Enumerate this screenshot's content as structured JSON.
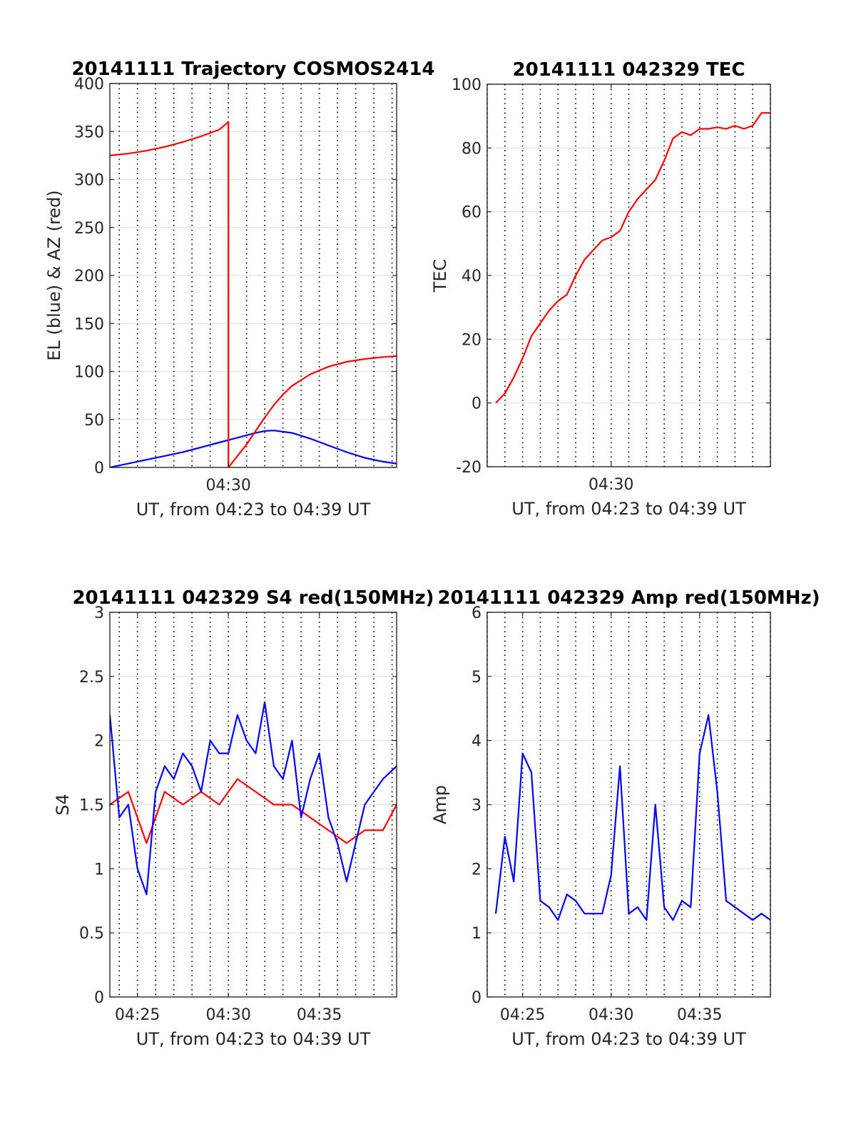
{
  "chart_data": [
    {
      "id": "trajectory",
      "type": "line",
      "title": "20141111 Trajectory COSMOS2414",
      "xlabel": "UT, from 04:23 to 04:39 UT",
      "ylabel": "EL (blue) & AZ (red)",
      "xlim": [
        "04:23:29",
        "04:39:15"
      ],
      "ylim": [
        0,
        400
      ],
      "yticks": [
        0,
        50,
        100,
        150,
        200,
        250,
        300,
        350,
        400
      ],
      "xticks": [
        "04:30"
      ],
      "grid": true,
      "series": [
        {
          "color": "#0000ff",
          "x": [
            "04:23:29",
            "04:24:30",
            "04:25:30",
            "04:26:30",
            "04:27:30",
            "04:28:30",
            "04:29:30",
            "04:30:30",
            "04:31:30",
            "04:32:00",
            "04:32:30",
            "04:33:30",
            "04:34:30",
            "04:35:30",
            "04:36:30",
            "04:37:30",
            "04:38:30",
            "04:39:15"
          ],
          "y": [
            0,
            4,
            8,
            12,
            16,
            21,
            26,
            31,
            36,
            38,
            38.5,
            36,
            30,
            23,
            16,
            10,
            6,
            4
          ]
        },
        {
          "color": "#ff0000",
          "x": [
            "04:23:29",
            "04:24:30",
            "04:25:30",
            "04:26:30",
            "04:27:30",
            "04:28:30",
            "04:29:30",
            "04:30:00",
            "04:30:00",
            "04:30:30",
            "04:31:00",
            "04:31:30",
            "04:32:00",
            "04:32:30",
            "04:33:00",
            "04:33:30",
            "04:34:30",
            "04:35:30",
            "04:36:30",
            "04:37:30",
            "04:38:30",
            "04:39:15"
          ],
          "y": [
            325,
            327,
            330,
            334,
            339,
            345,
            352,
            360,
            0,
            12,
            24,
            38,
            52,
            65,
            76,
            85,
            97,
            105,
            110,
            113,
            115,
            116
          ]
        }
      ]
    },
    {
      "id": "tec",
      "type": "line",
      "title": "20141111 042329 TEC",
      "xlabel": "UT, from 04:23 to 04:39 UT",
      "ylabel": "TEC",
      "xlim": [
        "04:23:00",
        "04:39:00"
      ],
      "ylim": [
        -20,
        100
      ],
      "yticks": [
        -20,
        0,
        20,
        40,
        60,
        80,
        100
      ],
      "xticks": [
        "04:30"
      ],
      "grid": true,
      "series": [
        {
          "color": "#ff0000",
          "x": [
            "04:23:29",
            "04:24:00",
            "04:24:30",
            "04:25:00",
            "04:25:30",
            "04:26:00",
            "04:26:30",
            "04:27:00",
            "04:27:30",
            "04:28:00",
            "04:28:30",
            "04:29:00",
            "04:29:30",
            "04:30:00",
            "04:30:30",
            "04:31:00",
            "04:31:30",
            "04:32:00",
            "04:32:30",
            "04:33:00",
            "04:33:30",
            "04:34:00",
            "04:34:30",
            "04:35:00",
            "04:35:30",
            "04:36:00",
            "04:36:30",
            "04:37:00",
            "04:37:30",
            "04:38:00",
            "04:38:30",
            "04:39:00"
          ],
          "y": [
            0,
            3,
            8,
            14,
            21,
            25,
            29,
            32,
            34,
            40,
            45,
            48,
            51,
            52,
            54,
            60,
            64,
            67,
            70,
            76,
            83,
            85,
            84,
            86,
            86,
            86.5,
            86,
            87,
            86,
            87,
            91,
            91
          ]
        }
      ]
    },
    {
      "id": "s4",
      "type": "line",
      "title": "20141111 042329 S4 red(150MHz)",
      "xlabel": "UT, from 04:23 to 04:39 UT",
      "ylabel": "S4",
      "xlim": [
        "04:23:29",
        "04:39:15"
      ],
      "ylim": [
        0,
        3
      ],
      "yticks": [
        0,
        0.5,
        1,
        1.5,
        2,
        2.5,
        3
      ],
      "xticks": [
        "04:25",
        "04:30",
        "04:35"
      ],
      "grid": true,
      "series": [
        {
          "color": "#ff0000",
          "x": [
            "04:23:29",
            "04:24:30",
            "04:25:30",
            "04:26:30",
            "04:27:30",
            "04:28:30",
            "04:29:30",
            "04:30:30",
            "04:31:30",
            "04:32:30",
            "04:33:30",
            "04:34:30",
            "04:35:30",
            "04:36:30",
            "04:37:30",
            "04:38:30",
            "04:39:15"
          ],
          "y": [
            1.5,
            1.6,
            1.2,
            1.6,
            1.5,
            1.6,
            1.5,
            1.7,
            1.6,
            1.5,
            1.5,
            1.4,
            1.3,
            1.2,
            1.3,
            1.3,
            1.5
          ]
        },
        {
          "color": "#0000ff",
          "x": [
            "04:23:29",
            "04:24:00",
            "04:24:30",
            "04:25:00",
            "04:25:30",
            "04:26:00",
            "04:26:30",
            "04:27:00",
            "04:27:30",
            "04:28:00",
            "04:28:30",
            "04:29:00",
            "04:29:30",
            "04:30:00",
            "04:30:30",
            "04:31:00",
            "04:31:30",
            "04:32:00",
            "04:32:30",
            "04:33:00",
            "04:33:30",
            "04:34:00",
            "04:34:30",
            "04:35:00",
            "04:35:30",
            "04:36:00",
            "04:36:30",
            "04:37:00",
            "04:37:30",
            "04:38:00",
            "04:38:30",
            "04:39:15"
          ],
          "y": [
            2.2,
            1.4,
            1.5,
            1.0,
            0.8,
            1.6,
            1.8,
            1.7,
            1.9,
            1.8,
            1.6,
            2.0,
            1.9,
            1.9,
            2.2,
            2.0,
            1.9,
            2.3,
            1.8,
            1.7,
            2.0,
            1.4,
            1.7,
            1.9,
            1.4,
            1.2,
            0.9,
            1.2,
            1.5,
            1.6,
            1.7,
            1.8
          ]
        }
      ]
    },
    {
      "id": "amp",
      "type": "line",
      "title": "20141111 042329 Amp red(150MHz)",
      "xlabel": "UT, from 04:23 to 04:39 UT",
      "ylabel": "Amp",
      "xlim": [
        "04:23:00",
        "04:39:00"
      ],
      "ylim": [
        0,
        6
      ],
      "yticks": [
        0,
        1,
        2,
        3,
        4,
        5,
        6
      ],
      "xticks": [
        "04:25",
        "04:30",
        "04:35"
      ],
      "grid": true,
      "series": [
        {
          "color": "#0000ff",
          "x": [
            "04:23:29",
            "04:24:00",
            "04:24:30",
            "04:25:00",
            "04:25:30",
            "04:26:00",
            "04:26:30",
            "04:27:00",
            "04:27:30",
            "04:28:00",
            "04:28:30",
            "04:29:00",
            "04:29:30",
            "04:30:00",
            "04:30:30",
            "04:31:00",
            "04:31:30",
            "04:32:00",
            "04:32:30",
            "04:33:00",
            "04:33:30",
            "04:34:00",
            "04:34:30",
            "04:35:00",
            "04:35:30",
            "04:36:00",
            "04:36:30",
            "04:37:00",
            "04:37:30",
            "04:38:00",
            "04:38:30",
            "04:39:00"
          ],
          "y": [
            1.3,
            2.5,
            1.8,
            3.8,
            3.5,
            1.5,
            1.4,
            1.2,
            1.6,
            1.5,
            1.3,
            1.3,
            1.3,
            1.9,
            3.6,
            1.3,
            1.4,
            1.2,
            3.0,
            1.4,
            1.2,
            1.5,
            1.4,
            3.8,
            4.4,
            3.2,
            1.5,
            1.4,
            1.3,
            1.2,
            1.3,
            1.2
          ]
        }
      ]
    }
  ]
}
